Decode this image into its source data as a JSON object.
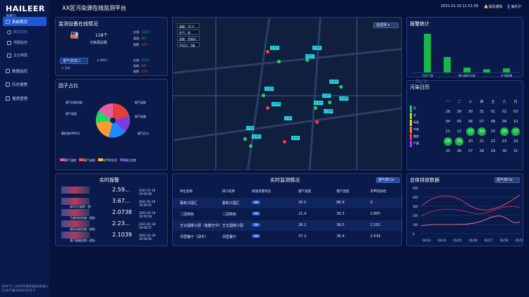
{
  "brand": {
    "name": "HAILEER",
    "sub": "海莱尔"
  },
  "header": {
    "title": "XX区污染源在线监测平台",
    "datetime": "2021-01-19 11:51:09",
    "notify": "消息通知",
    "user": "海乐尔"
  },
  "sidebar": {
    "items": [
      {
        "label": "系统首页",
        "active": true
      },
      {
        "label": "概况总览",
        "sub": true,
        "active": true
      },
      {
        "label": "地图监控",
        "sub": true
      },
      {
        "label": "企业档案",
        "sub": true
      },
      {
        "label": "数据监控"
      },
      {
        "label": "历史报警"
      },
      {
        "label": "报表管理"
      }
    ],
    "footer": "2020 © 江苏XX环境科技股份有限公司 苏ICP备19046742号-1"
  },
  "device": {
    "title": "监测设备在线情况",
    "count": "118个",
    "count_label": "污染源总数",
    "online": "在线：",
    "online_v": "115个",
    "offline": "离线：",
    "offline_v": "4个",
    "alarm": "报警：",
    "alarm_v": "25个",
    "tab1": "烟气排放口",
    "tab2": "VOCs",
    "tab3": "污水",
    "s2_online": "115个",
    "s2_offline": "4个",
    "s2_alarm": "25个"
  },
  "factor": {
    "title": "因子占比",
    "labels": [
      "烟气排放浓度",
      "烟气温度",
      "烟气湿度",
      "烟气流量",
      "烟气压力",
      "颗粒物(PM10)"
    ],
    "legend": [
      "烟气温度",
      "烟气湿度",
      "非甲烷总烃",
      "烟尘浓度"
    ],
    "colors": [
      "#e85b7a",
      "#ff4d4d",
      "#ffc01e",
      "#7b3bdf"
    ]
  },
  "weather": [
    "温度：11℃",
    "空气：轻",
    "湿度：西南风",
    "平风力：5级"
  ],
  "map_labels": [
    "企业A",
    "企业B",
    "企业C",
    "企业D",
    "企业E",
    "企业F",
    "企业G",
    "企业H",
    "企业I",
    "企业J",
    "企业K",
    "企业L",
    "企业M",
    "企业N"
  ],
  "select_label": "请选择",
  "alarm_stat": {
    "title": "报警统计",
    "bars": [
      {
        "label": "万达广场",
        "value": 95
      },
      {
        "label": "",
        "value": 38
      },
      {
        "label": "南山高压分局",
        "value": 12
      },
      {
        "label": "",
        "value": 8
      },
      {
        "label": "企业联通",
        "value": 10
      }
    ]
  },
  "calendar": {
    "title": "污染日历",
    "weekdays": [
      "一",
      "二",
      "三",
      "四",
      "五",
      "六",
      "日"
    ],
    "days": [
      [
        "28",
        "29",
        "30",
        "31",
        "01",
        "02",
        "03"
      ],
      [
        "04",
        "05",
        "06",
        "07",
        "08",
        "09",
        "10"
      ],
      [
        "11",
        "12",
        "13",
        "14",
        "15",
        "16",
        "17"
      ],
      [
        "18",
        "19",
        "20",
        "21",
        "22",
        "23",
        "24"
      ],
      [
        "25",
        "26",
        "27",
        "28",
        "29",
        "30",
        "31"
      ]
    ],
    "legend": [
      "优",
      "良",
      "轻度",
      "中度",
      "重度",
      "严重"
    ],
    "legend_colors": [
      "#22d463",
      "#9fe02b",
      "#ffd21e",
      "#ff8c1a",
      "#ff3a3a",
      "#a83bff"
    ]
  },
  "realtime_alarm": {
    "title": "实时报警",
    "rows": [
      {
        "value": "2.59...",
        "time": "2021-01-18 19:59:58"
      },
      {
        "value": "3.67...",
        "time": "2021-01-18 19:59:55"
      },
      {
        "value": "2.0738",
        "time": "2021-01-18 19:59:58"
      },
      {
        "value": "2.23...",
        "time": "2021-01-18 19:59:57"
      },
      {
        "value": "2.1039",
        "time": "2021-01-18 19:59:56"
      }
    ],
    "sublabels": [
      "",
      "清XX污染第一源",
      "乃烟排放浓度一超标",
      "超标排放浓度一超标",
      "蒸汽烟烟浓度一超标"
    ]
  },
  "monitor": {
    "title": "实时监测情况",
    "select": "烟气排口",
    "headers": [
      "单位名称",
      "排口名称",
      "排放流量状态",
      "烟气温度",
      "烟气湿度",
      "非甲烷总烃"
    ],
    "rows": [
      [
        "蔡和江国汇",
        "蔡和江国汇",
        "ON",
        "30.5",
        "86.9",
        "0"
      ],
      [
        "二冠特色",
        "二冠特色",
        "ON",
        "21.4",
        "39.3",
        "2.897"
      ],
      [
        "王记酒楼小厨（金鹏王中）",
        "王记酒楼小厨",
        "ON",
        "26.1",
        "38.5",
        "2.161"
      ],
      [
        "邻里餐厅（润平）",
        "邻里餐厅",
        "ON",
        "37.2",
        "36.4",
        "2.534"
      ]
    ]
  },
  "emission": {
    "title": "总体排放数据",
    "select": "烟气排口",
    "yticks": [
      "500",
      "400",
      "300",
      "200",
      "100",
      "0"
    ],
    "xticks": [
      "01/13",
      "01/14",
      "01/15",
      "01/16",
      "01/17",
      "01/18",
      "01/19"
    ]
  }
}
